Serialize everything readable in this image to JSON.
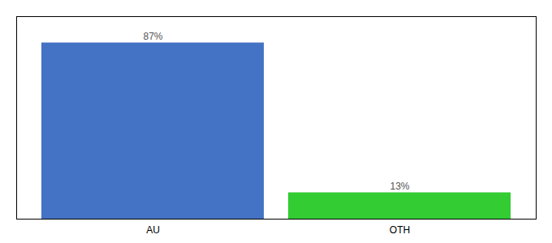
{
  "chart_data": {
    "type": "bar",
    "categories": [
      "AU",
      "OTH"
    ],
    "values": [
      87,
      13
    ],
    "value_labels": [
      "87%",
      "13%"
    ],
    "colors": [
      "#4472c4",
      "#33cc33"
    ],
    "ylim": [
      0,
      100
    ],
    "data_labels": true,
    "tick_labels": "x"
  }
}
